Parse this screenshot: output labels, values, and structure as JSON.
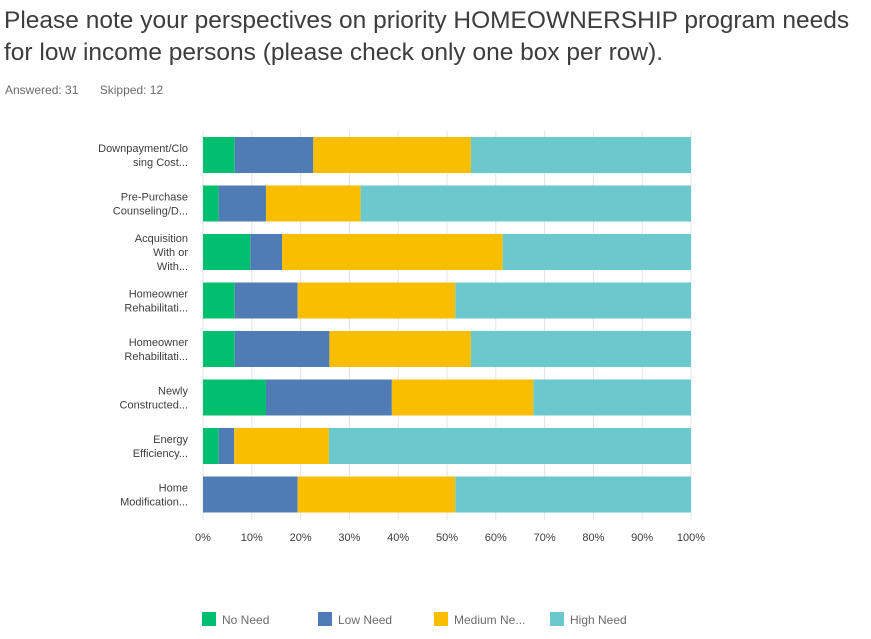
{
  "question": {
    "title": "Please note your perspectives on priority HOMEOWNERSHIP program needs for low income persons (please check only one box per row).",
    "answered": "Answered: 31",
    "skipped": "Skipped: 12"
  },
  "chart_data": {
    "type": "bar",
    "orientation": "horizontal",
    "stacked": true,
    "categories": [
      [
        "Downpayment/Clo",
        "sing Cost..."
      ],
      [
        "Pre-Purchase",
        "Counseling/D..."
      ],
      [
        "Acquisition",
        "With or",
        "With..."
      ],
      [
        "Homeowner",
        "Rehabilitati..."
      ],
      [
        "Homeowner",
        "Rehabilitati..."
      ],
      [
        "Newly",
        "Constructed..."
      ],
      [
        "Energy",
        "Efficiency..."
      ],
      [
        "Home",
        "Modification..."
      ]
    ],
    "series": [
      {
        "name": "No Need",
        "color": "#00bf6f",
        "values": [
          6.5,
          3.2,
          9.7,
          6.5,
          6.5,
          12.9,
          3.2,
          0
        ]
      },
      {
        "name": "Low Need",
        "color": "#507cb6",
        "values": [
          16.1,
          9.7,
          6.5,
          12.9,
          19.4,
          25.8,
          3.2,
          19.4
        ]
      },
      {
        "name": "Medium Ne...",
        "color": "#f9be00",
        "values": [
          32.3,
          19.4,
          45.2,
          32.3,
          29.0,
          29.0,
          19.4,
          32.3
        ]
      },
      {
        "name": "High Need",
        "color": "#6bc8cd",
        "values": [
          45.1,
          67.7,
          38.6,
          48.3,
          45.1,
          32.3,
          74.2,
          48.3
        ]
      }
    ],
    "x_ticks": [
      "0%",
      "10%",
      "20%",
      "30%",
      "40%",
      "50%",
      "60%",
      "70%",
      "80%",
      "90%",
      "100%"
    ],
    "xlim": [
      0,
      100
    ],
    "grid": true,
    "legend": "bottom"
  }
}
